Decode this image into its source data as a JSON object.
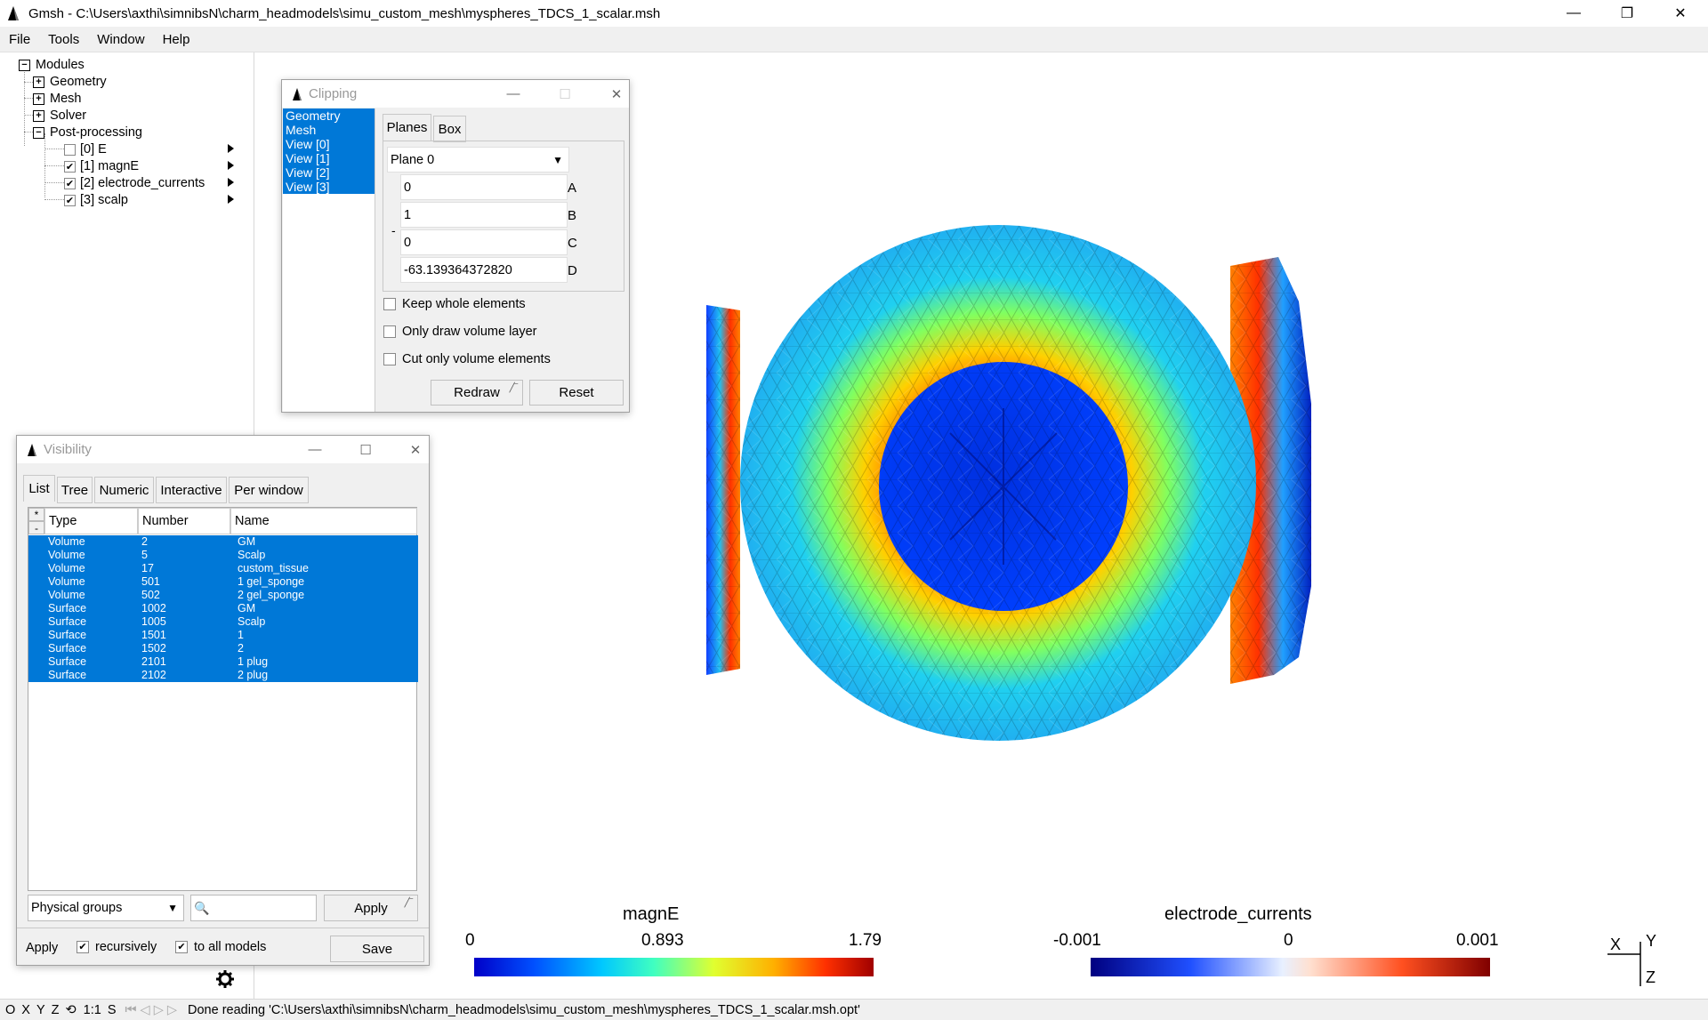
{
  "window": {
    "title": "Gmsh - C:\\Users\\axthi\\simnibsN\\charm_headmodels\\simu_custom_mesh\\myspheres_TDCS_1_scalar.msh",
    "minimize": "—",
    "restore": "❐",
    "close": "✕"
  },
  "menu": {
    "file": "File",
    "tools": "Tools",
    "window": "Window",
    "help": "Help"
  },
  "tree": {
    "root": "Modules",
    "items": [
      "Geometry",
      "Mesh",
      "Solver",
      "Post-processing"
    ],
    "views": [
      {
        "label": "[0] E",
        "checked": false
      },
      {
        "label": "[1] magnE",
        "checked": true
      },
      {
        "label": "[2] electrode_currents",
        "checked": true
      },
      {
        "label": "[3] scalp",
        "checked": true
      }
    ]
  },
  "clipping": {
    "title": "Clipping",
    "list": [
      "Geometry",
      "Mesh",
      "View [0]",
      "View [1]",
      "View [2]",
      "View [3]"
    ],
    "tabs": [
      "Planes",
      "Box"
    ],
    "plane_select": "Plane 0",
    "fields": [
      {
        "value": "0",
        "label": "A"
      },
      {
        "value": "1",
        "label": "B"
      },
      {
        "value": "0",
        "label": "C"
      },
      {
        "value": "-63.139364372820",
        "label": "D"
      }
    ],
    "minus": "-",
    "options": [
      "Keep whole elements",
      "Only draw volume layer",
      "Cut only volume elements"
    ],
    "redraw": "Redraw",
    "reset": "Reset"
  },
  "visibility": {
    "title": "Visibility",
    "tabs": [
      "List",
      "Tree",
      "Numeric",
      "Interactive",
      "Per window"
    ],
    "sort_star": "*",
    "sort_minus": "-",
    "columns": [
      "Type",
      "Number",
      "Name"
    ],
    "rows": [
      [
        "Volume",
        "2",
        "GM"
      ],
      [
        "Volume",
        "5",
        "Scalp"
      ],
      [
        "Volume",
        "17",
        "custom_tissue"
      ],
      [
        "Volume",
        "501",
        "1 gel_sponge"
      ],
      [
        "Volume",
        "502",
        "2 gel_sponge"
      ],
      [
        "Surface",
        "1002",
        "GM"
      ],
      [
        "Surface",
        "1005",
        "Scalp"
      ],
      [
        "Surface",
        "1501",
        "1"
      ],
      [
        "Surface",
        "1502",
        "2"
      ],
      [
        "Surface",
        "2101",
        "1 plug"
      ],
      [
        "Surface",
        "2102",
        "2 plug"
      ]
    ],
    "group_select": "Physical groups",
    "apply_btn": "Apply",
    "apply_label": "Apply",
    "recursively": "recursively",
    "to_all_models": "to all models",
    "save": "Save"
  },
  "scale_magnE": {
    "title": "magnE",
    "min": "0",
    "mid": "0.893",
    "max": "1.79"
  },
  "scale_currents": {
    "title": "electrode_currents",
    "min": "-0.001",
    "mid": "0",
    "max": "0.001"
  },
  "axes": {
    "x": "X",
    "y": "Y",
    "z": "Z"
  },
  "status": {
    "buttons": [
      "O",
      "X",
      "Y",
      "Z",
      "⟲",
      "1:1",
      "S"
    ],
    "message": "Done reading 'C:\\Users\\axthi\\simnibsN\\charm_headmodels\\simu_custom_mesh\\myspheres_TDCS_1_scalar.msh.opt'"
  },
  "colors": {
    "selection": "#0078d7",
    "jet": [
      "#0000c8",
      "#0050ff",
      "#00c8ff",
      "#40ffc0",
      "#e0ff30",
      "#ffb000",
      "#ff3000",
      "#a00000"
    ],
    "diverging": [
      "#000080",
      "#2050ff",
      "#e8f0ff",
      "#ffe0d0",
      "#ff5020",
      "#800000"
    ]
  }
}
